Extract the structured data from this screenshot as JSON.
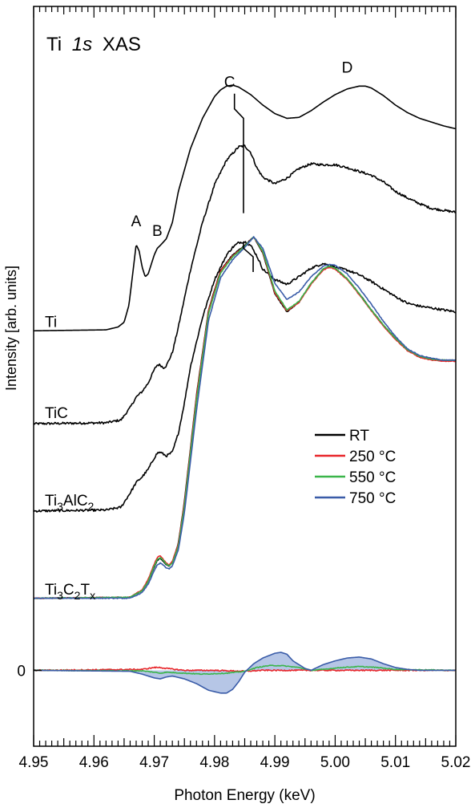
{
  "chart_data": {
    "type": "line",
    "title": "Ti 1s XAS",
    "title_parts": {
      "element": "Ti",
      "edge": "1s",
      "technique": "XAS"
    },
    "xlabel": "Photon Energy (keV)",
    "ylabel": "Intensity [arb. units]",
    "xlim": [
      4.95,
      5.02
    ],
    "x_ticks": [
      4.95,
      4.96,
      4.97,
      4.98,
      4.99,
      5.0,
      5.01,
      5.02
    ],
    "x_tick_labels": [
      "4.95",
      "4.96",
      "4.97",
      "4.98",
      "4.99",
      "5.00",
      "5.01",
      "5.02"
    ],
    "ylim": [
      -0.8,
      7.0
    ],
    "y_zero_label": "0",
    "grid": false,
    "legend": {
      "placement": "center-right",
      "entries": [
        {
          "label": "RT",
          "color": "#000000"
        },
        {
          "label": "250 °C",
          "color": "#e8262b"
        },
        {
          "label": "550 °C",
          "color": "#3ab54a"
        },
        {
          "label": "750 °C",
          "color": "#3a5ca8"
        }
      ]
    },
    "feature_labels": [
      {
        "text": "A",
        "x": 4.967,
        "y": 4.68
      },
      {
        "text": "B",
        "x": 4.9705,
        "y": 4.58
      },
      {
        "text": "C",
        "x": 4.9825,
        "y": 6.15
      },
      {
        "text": "D",
        "x": 5.002,
        "y": 6.3
      }
    ],
    "sample_labels": [
      {
        "main": "Ti",
        "sub": [],
        "y": 3.62
      },
      {
        "main": "TiC",
        "sub": [],
        "y": 2.66
      },
      {
        "main": "Ti3AlC2",
        "parts": [
          [
            "Ti",
            ""
          ],
          [
            "3",
            "sub"
          ],
          [
            "AlC",
            ""
          ],
          [
            "2",
            "sub"
          ]
        ],
        "y": 1.74
      },
      {
        "main": "Ti3C2Tx",
        "parts": [
          [
            "Ti",
            ""
          ],
          [
            "3",
            "sub"
          ],
          [
            "C",
            ""
          ],
          [
            "2",
            "sub"
          ],
          [
            "T",
            ""
          ],
          [
            "x",
            "sub"
          ]
        ],
        "y": 0.8
      }
    ],
    "series": [
      {
        "name": "Ti",
        "color": "#000000",
        "noise": 0.0,
        "x": [
          4.95,
          4.962,
          4.964,
          4.965,
          4.9658,
          4.9665,
          4.967,
          4.9675,
          4.968,
          4.9685,
          4.969,
          4.9695,
          4.97,
          4.9705,
          4.971,
          4.972,
          4.973,
          4.974,
          4.976,
          4.978,
          4.98,
          4.981,
          4.982,
          4.983,
          4.984,
          4.986,
          4.988,
          4.99,
          4.992,
          4.994,
          4.996,
          4.998,
          5.0,
          5.002,
          5.004,
          5.005,
          5.006,
          5.008,
          5.01,
          5.012,
          5.014,
          5.016,
          5.018,
          5.02
        ],
        "y": [
          3.58,
          3.59,
          3.62,
          3.67,
          3.85,
          4.22,
          4.49,
          4.42,
          4.25,
          4.15,
          4.18,
          4.28,
          4.38,
          4.45,
          4.48,
          4.55,
          4.72,
          5.05,
          5.5,
          5.82,
          6.05,
          6.12,
          6.16,
          6.17,
          6.15,
          6.07,
          5.96,
          5.87,
          5.82,
          5.83,
          5.9,
          5.99,
          6.07,
          6.13,
          6.16,
          6.16,
          6.14,
          6.06,
          5.96,
          5.88,
          5.82,
          5.78,
          5.74,
          5.71
        ]
      },
      {
        "name": "TiC",
        "color": "#000000",
        "noise": 0.012,
        "x": [
          4.95,
          4.962,
          4.9645,
          4.966,
          4.967,
          4.968,
          4.969,
          4.97,
          4.9705,
          4.971,
          4.9715,
          4.972,
          4.973,
          4.974,
          4.975,
          4.976,
          4.978,
          4.98,
          4.982,
          4.984,
          4.985,
          4.986,
          4.987,
          4.988,
          4.99,
          4.992,
          4.994,
          4.996,
          4.998,
          5.0,
          5.002,
          5.004,
          5.006,
          5.008,
          5.01,
          5.012,
          5.014,
          5.016,
          5.018,
          5.02
        ],
        "y": [
          2.6,
          2.61,
          2.64,
          2.77,
          2.88,
          2.94,
          3.03,
          3.17,
          3.22,
          3.22,
          3.19,
          3.21,
          3.35,
          3.62,
          3.92,
          4.22,
          4.72,
          5.12,
          5.38,
          5.52,
          5.53,
          5.46,
          5.3,
          5.2,
          5.13,
          5.19,
          5.29,
          5.34,
          5.33,
          5.33,
          5.3,
          5.26,
          5.22,
          5.15,
          5.05,
          4.98,
          4.92,
          4.87,
          4.85,
          4.83
        ]
      },
      {
        "name": "Ti3AlC2",
        "color": "#000000",
        "noise": 0.012,
        "x": [
          4.95,
          4.962,
          4.9645,
          4.966,
          4.967,
          4.968,
          4.969,
          4.97,
          4.9705,
          4.971,
          4.9715,
          4.972,
          4.973,
          4.974,
          4.975,
          4.976,
          4.978,
          4.98,
          4.982,
          4.983,
          4.984,
          4.985,
          4.986,
          4.987,
          4.988,
          4.99,
          4.992,
          4.994,
          4.996,
          4.998,
          5.0,
          5.002,
          5.004,
          5.006,
          5.008,
          5.01,
          5.012,
          5.014,
          5.016,
          5.018,
          5.02
        ],
        "y": [
          1.68,
          1.69,
          1.72,
          1.87,
          1.98,
          2.04,
          2.12,
          2.24,
          2.29,
          2.3,
          2.28,
          2.26,
          2.3,
          2.5,
          2.82,
          3.2,
          3.72,
          4.12,
          4.38,
          4.46,
          4.51,
          4.52,
          4.48,
          4.37,
          4.23,
          4.12,
          4.07,
          4.15,
          4.24,
          4.29,
          4.25,
          4.22,
          4.17,
          4.1,
          4.02,
          3.94,
          3.87,
          3.84,
          3.82,
          3.8,
          3.78
        ]
      },
      {
        "name": "RT",
        "color": "#000000",
        "noise": 0.004,
        "x": [
          4.95,
          4.966,
          4.968,
          4.969,
          4.97,
          4.9705,
          4.971,
          4.9715,
          4.972,
          4.9725,
          4.973,
          4.974,
          4.975,
          4.977,
          4.979,
          4.981,
          4.983,
          4.985,
          4.9865,
          4.988,
          4.99,
          4.992,
          4.994,
          4.996,
          4.998,
          4.999,
          5.0,
          5.002,
          5.004,
          5.006,
          5.008,
          5.01,
          5.012,
          5.014,
          5.016,
          5.018,
          5.02
        ],
        "y": [
          0.76,
          0.77,
          0.84,
          0.94,
          1.09,
          1.16,
          1.18,
          1.15,
          1.11,
          1.1,
          1.14,
          1.34,
          1.78,
          2.9,
          3.8,
          4.22,
          4.38,
          4.48,
          4.57,
          4.4,
          3.97,
          3.78,
          3.88,
          4.08,
          4.23,
          4.26,
          4.24,
          4.13,
          3.97,
          3.8,
          3.64,
          3.5,
          3.38,
          3.31,
          3.28,
          3.27,
          3.27
        ]
      },
      {
        "name": "250 °C",
        "color": "#e8262b",
        "noise": 0.004,
        "x": [
          4.95,
          4.966,
          4.968,
          4.969,
          4.97,
          4.9705,
          4.971,
          4.9715,
          4.972,
          4.9725,
          4.973,
          4.974,
          4.975,
          4.977,
          4.979,
          4.981,
          4.983,
          4.985,
          4.9865,
          4.988,
          4.99,
          4.992,
          4.994,
          4.996,
          4.998,
          4.999,
          5.0,
          5.002,
          5.004,
          5.006,
          5.008,
          5.01,
          5.012,
          5.014,
          5.016,
          5.018,
          5.02
        ],
        "y": [
          0.76,
          0.77,
          0.85,
          0.96,
          1.12,
          1.19,
          1.21,
          1.17,
          1.13,
          1.11,
          1.15,
          1.33,
          1.76,
          2.88,
          3.79,
          4.21,
          4.37,
          4.47,
          4.57,
          4.41,
          3.98,
          3.79,
          3.88,
          4.07,
          4.22,
          4.25,
          4.23,
          4.12,
          3.96,
          3.79,
          3.63,
          3.49,
          3.37,
          3.3,
          3.27,
          3.26,
          3.26
        ]
      },
      {
        "name": "550 °C",
        "color": "#3ab54a",
        "noise": 0.004,
        "x": [
          4.95,
          4.966,
          4.968,
          4.969,
          4.97,
          4.9705,
          4.971,
          4.9715,
          4.972,
          4.9725,
          4.973,
          4.974,
          4.975,
          4.977,
          4.979,
          4.981,
          4.983,
          4.985,
          4.9865,
          4.988,
          4.99,
          4.992,
          4.994,
          4.996,
          4.998,
          4.999,
          5.0,
          5.002,
          5.004,
          5.006,
          5.008,
          5.01,
          5.012,
          5.014,
          5.016,
          5.018,
          5.02
        ],
        "y": [
          0.76,
          0.77,
          0.84,
          0.94,
          1.1,
          1.17,
          1.19,
          1.16,
          1.12,
          1.1,
          1.13,
          1.31,
          1.73,
          2.84,
          3.76,
          4.19,
          4.36,
          4.47,
          4.57,
          4.42,
          4.0,
          3.8,
          3.89,
          4.08,
          4.23,
          4.26,
          4.24,
          4.13,
          3.97,
          3.8,
          3.64,
          3.5,
          3.38,
          3.31,
          3.28,
          3.27,
          3.27
        ]
      },
      {
        "name": "750 °C",
        "color": "#3a5ca8",
        "noise": 0.004,
        "x": [
          4.95,
          4.966,
          4.968,
          4.969,
          4.97,
          4.9705,
          4.971,
          4.9715,
          4.972,
          4.9725,
          4.973,
          4.974,
          4.975,
          4.977,
          4.979,
          4.981,
          4.983,
          4.985,
          4.9865,
          4.988,
          4.99,
          4.992,
          4.994,
          4.996,
          4.998,
          4.999,
          5.0,
          5.002,
          5.004,
          5.006,
          5.008,
          5.01,
          5.012,
          5.014,
          5.016,
          5.018,
          5.02
        ],
        "y": [
          0.76,
          0.76,
          0.82,
          0.91,
          1.05,
          1.11,
          1.13,
          1.11,
          1.08,
          1.07,
          1.1,
          1.27,
          1.66,
          2.74,
          3.69,
          4.14,
          4.33,
          4.46,
          4.57,
          4.45,
          4.08,
          3.91,
          3.99,
          4.15,
          4.26,
          4.28,
          4.27,
          4.18,
          4.03,
          3.86,
          3.68,
          3.52,
          3.39,
          3.32,
          3.29,
          3.27,
          3.27
        ]
      }
    ],
    "difference_series": [
      {
        "name": "250 °C",
        "color": "#e8262b",
        "noise": 0.006,
        "x": [
          4.95,
          4.968,
          4.97,
          4.971,
          4.972,
          4.975,
          4.98,
          4.985,
          4.988,
          4.99,
          4.995,
          5.0,
          5.005,
          5.01,
          5.02
        ],
        "y": [
          0.0,
          0.01,
          0.03,
          0.03,
          0.02,
          0.0,
          0.0,
          -0.01,
          0.0,
          0.0,
          0.0,
          0.0,
          0.0,
          0.0,
          0.0
        ]
      },
      {
        "name": "550 °C",
        "color": "#3ab54a",
        "noise": 0.004,
        "x": [
          4.95,
          4.968,
          4.97,
          4.971,
          4.972,
          4.975,
          4.978,
          4.982,
          4.985,
          4.987,
          4.989,
          4.991,
          4.994,
          4.996,
          4.998,
          5.001,
          5.004,
          5.007,
          5.01,
          5.02
        ],
        "y": [
          0.0,
          -0.005,
          -0.02,
          -0.03,
          -0.02,
          -0.03,
          -0.04,
          -0.03,
          -0.01,
          0.03,
          0.05,
          0.05,
          0.03,
          0.0,
          0.01,
          0.03,
          0.04,
          0.03,
          0.01,
          0.0
        ]
      },
      {
        "name": "750 °C",
        "color": "#3a5ca8",
        "noise": 0.0,
        "filled": true,
        "x": [
          4.95,
          4.966,
          4.968,
          4.97,
          4.971,
          4.972,
          4.973,
          4.975,
          4.977,
          4.979,
          4.981,
          4.982,
          4.983,
          4.984,
          4.985,
          4.9865,
          4.988,
          4.99,
          4.991,
          4.992,
          4.993,
          4.995,
          4.996,
          4.997,
          4.998,
          5.0,
          5.002,
          5.004,
          5.006,
          5.008,
          5.01,
          5.012,
          5.014,
          5.016,
          5.02
        ],
        "y": [
          0.0,
          -0.01,
          -0.04,
          -0.08,
          -0.09,
          -0.07,
          -0.06,
          -0.09,
          -0.14,
          -0.21,
          -0.24,
          -0.24,
          -0.2,
          -0.12,
          -0.02,
          0.07,
          0.13,
          0.18,
          0.19,
          0.17,
          0.1,
          0.02,
          0.0,
          0.03,
          0.06,
          0.1,
          0.13,
          0.14,
          0.12,
          0.07,
          0.03,
          0.01,
          0.0,
          0.0,
          0.0
        ]
      }
    ],
    "marker_lines": [
      {
        "x": [
          4.9833,
          4.9833,
          4.9848,
          4.9848
        ],
        "y": [
          6.08,
          5.92,
          5.82,
          5.49
        ]
      },
      {
        "x": [
          4.9848,
          4.9848
        ],
        "y": [
          5.49,
          4.82
        ]
      },
      {
        "x": [
          4.9848,
          4.9848,
          4.9864,
          4.9864
        ],
        "y": [
          4.52,
          4.45,
          4.36,
          4.2
        ]
      }
    ]
  }
}
